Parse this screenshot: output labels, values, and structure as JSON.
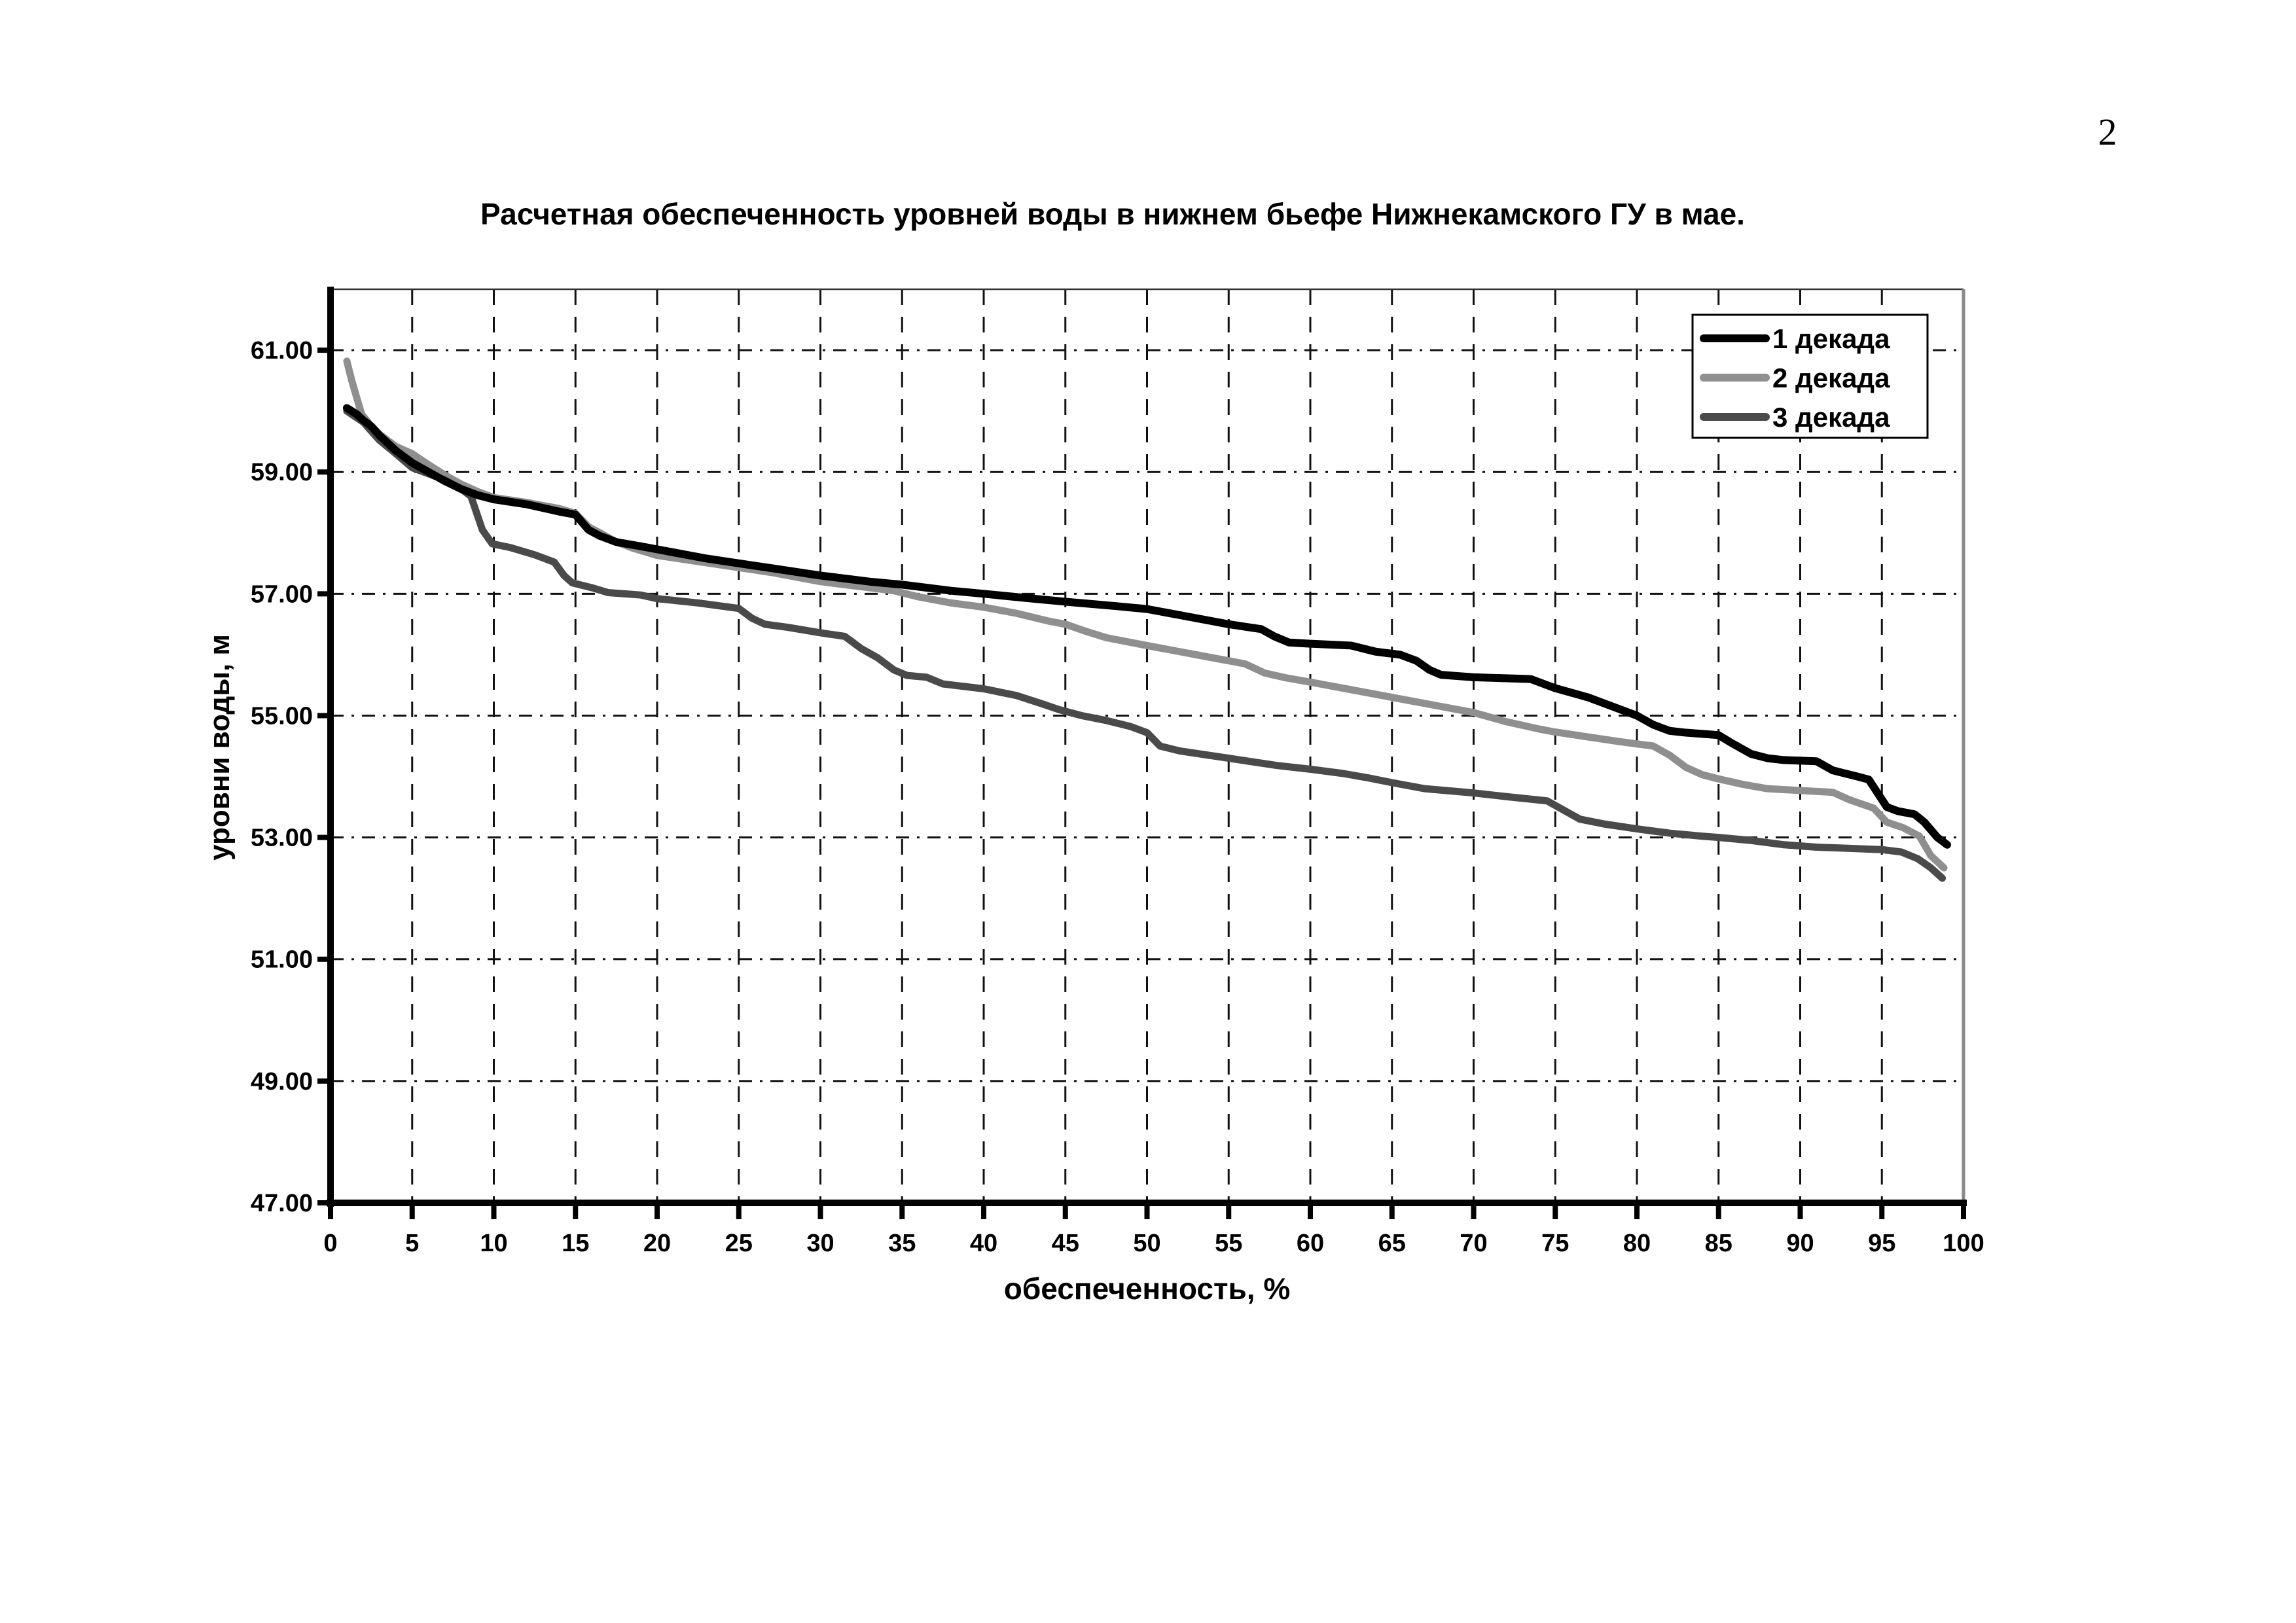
{
  "page": {
    "number": "2"
  },
  "chart_data": {
    "type": "line",
    "title": "Расчетная обеспеченность уровней воды в нижнем бьефе Нижнекамского ГУ в мае.",
    "xlabel": "обеспеченность, %",
    "ylabel": "уровни воды, м",
    "xlim": [
      0,
      100
    ],
    "ylim": [
      47,
      62
    ],
    "grid": true,
    "legend_position": "top-right",
    "x_ticks": [
      0,
      5,
      10,
      15,
      20,
      25,
      30,
      35,
      40,
      45,
      50,
      55,
      60,
      65,
      70,
      75,
      80,
      85,
      90,
      95,
      100
    ],
    "y_ticks": [
      {
        "value": 61,
        "label": "61.00"
      },
      {
        "value": 59,
        "label": "59.00"
      },
      {
        "value": 57,
        "label": "57.00"
      },
      {
        "value": 55,
        "label": "55.00"
      },
      {
        "value": 53,
        "label": "53.00"
      },
      {
        "value": 51,
        "label": "51.00"
      },
      {
        "value": 49,
        "label": "49.00"
      },
      {
        "value": 47,
        "label": "47.00"
      }
    ],
    "series": [
      {
        "name": "1 декада",
        "color": "#000000",
        "width": 12,
        "points": [
          [
            1,
            60.05
          ],
          [
            1.6,
            59.95
          ],
          [
            2,
            59.85
          ],
          [
            2.5,
            59.75
          ],
          [
            3,
            59.6
          ],
          [
            4,
            59.35
          ],
          [
            5,
            59.15
          ],
          [
            6,
            59.0
          ],
          [
            7,
            58.85
          ],
          [
            8,
            58.72
          ],
          [
            9,
            58.62
          ],
          [
            10,
            58.55
          ],
          [
            12,
            58.47
          ],
          [
            14,
            58.35
          ],
          [
            15,
            58.3
          ],
          [
            15.8,
            58.05
          ],
          [
            16.5,
            57.95
          ],
          [
            17.5,
            57.85
          ],
          [
            19,
            57.78
          ],
          [
            21,
            57.68
          ],
          [
            23,
            57.58
          ],
          [
            25,
            57.5
          ],
          [
            27,
            57.42
          ],
          [
            30,
            57.3
          ],
          [
            33,
            57.2
          ],
          [
            35,
            57.15
          ],
          [
            38,
            57.05
          ],
          [
            40,
            57.0
          ],
          [
            43,
            56.92
          ],
          [
            45,
            56.87
          ],
          [
            48,
            56.8
          ],
          [
            50,
            56.75
          ],
          [
            52,
            56.65
          ],
          [
            55,
            56.5
          ],
          [
            57,
            56.42
          ],
          [
            57.8,
            56.3
          ],
          [
            58.7,
            56.2
          ],
          [
            60,
            56.18
          ],
          [
            62.5,
            56.15
          ],
          [
            64,
            56.05
          ],
          [
            65.5,
            56.0
          ],
          [
            66.5,
            55.9
          ],
          [
            67.3,
            55.75
          ],
          [
            68,
            55.67
          ],
          [
            70,
            55.63
          ],
          [
            73.5,
            55.6
          ],
          [
            75,
            55.45
          ],
          [
            77,
            55.3
          ],
          [
            78.5,
            55.15
          ],
          [
            80,
            55.0
          ],
          [
            81,
            54.85
          ],
          [
            82,
            54.75
          ],
          [
            83,
            54.72
          ],
          [
            85,
            54.68
          ],
          [
            85.8,
            54.55
          ],
          [
            87,
            54.37
          ],
          [
            88,
            54.3
          ],
          [
            89,
            54.27
          ],
          [
            91,
            54.25
          ],
          [
            92,
            54.1
          ],
          [
            93.5,
            54.0
          ],
          [
            94.2,
            53.95
          ],
          [
            95.3,
            53.5
          ],
          [
            96,
            53.43
          ],
          [
            97,
            53.38
          ],
          [
            97.6,
            53.25
          ],
          [
            98.4,
            53.0
          ],
          [
            99,
            52.88
          ]
        ]
      },
      {
        "name": "2 декада",
        "color": "#8f8f8f",
        "width": 11,
        "points": [
          [
            1,
            60.82
          ],
          [
            1.3,
            60.5
          ],
          [
            1.9,
            59.95
          ],
          [
            2.5,
            59.75
          ],
          [
            3,
            59.62
          ],
          [
            4,
            59.42
          ],
          [
            5,
            59.3
          ],
          [
            6,
            59.12
          ],
          [
            7,
            58.95
          ],
          [
            8,
            58.8
          ],
          [
            9,
            58.68
          ],
          [
            10,
            58.58
          ],
          [
            12,
            58.5
          ],
          [
            14,
            58.4
          ],
          [
            15,
            58.32
          ],
          [
            15.8,
            58.1
          ],
          [
            16.5,
            58.0
          ],
          [
            17.5,
            57.85
          ],
          [
            18.5,
            57.75
          ],
          [
            20,
            57.63
          ],
          [
            22,
            57.55
          ],
          [
            24,
            57.47
          ],
          [
            25,
            57.43
          ],
          [
            27,
            57.35
          ],
          [
            30,
            57.2
          ],
          [
            33,
            57.1
          ],
          [
            34.5,
            57.05
          ],
          [
            36,
            56.95
          ],
          [
            38,
            56.85
          ],
          [
            40,
            56.78
          ],
          [
            42,
            56.68
          ],
          [
            44,
            56.55
          ],
          [
            45,
            56.5
          ],
          [
            46.3,
            56.38
          ],
          [
            47.5,
            56.28
          ],
          [
            50,
            56.15
          ],
          [
            52,
            56.05
          ],
          [
            54,
            55.95
          ],
          [
            56,
            55.85
          ],
          [
            57.2,
            55.7
          ],
          [
            58.5,
            55.62
          ],
          [
            60,
            55.55
          ],
          [
            62,
            55.45
          ],
          [
            65,
            55.3
          ],
          [
            67,
            55.2
          ],
          [
            70,
            55.05
          ],
          [
            72,
            54.9
          ],
          [
            74,
            54.78
          ],
          [
            75,
            54.73
          ],
          [
            77,
            54.65
          ],
          [
            79,
            54.57
          ],
          [
            81,
            54.5
          ],
          [
            82,
            54.35
          ],
          [
            83,
            54.15
          ],
          [
            84,
            54.03
          ],
          [
            85,
            53.96
          ],
          [
            86.5,
            53.87
          ],
          [
            88,
            53.8
          ],
          [
            90,
            53.77
          ],
          [
            92,
            53.74
          ],
          [
            93,
            53.62
          ],
          [
            94.5,
            53.48
          ],
          [
            95.3,
            53.25
          ],
          [
            96.3,
            53.16
          ],
          [
            97.3,
            53.02
          ],
          [
            98,
            52.7
          ],
          [
            98.8,
            52.5
          ]
        ]
      },
      {
        "name": "3 декада",
        "color": "#4a4a4a",
        "width": 11,
        "points": [
          [
            1,
            60.0
          ],
          [
            2,
            59.82
          ],
          [
            3,
            59.52
          ],
          [
            4,
            59.3
          ],
          [
            5,
            59.07
          ],
          [
            6,
            58.97
          ],
          [
            7,
            58.87
          ],
          [
            8,
            58.72
          ],
          [
            8.6,
            58.6
          ],
          [
            9.3,
            58.05
          ],
          [
            9.9,
            57.82
          ],
          [
            11,
            57.76
          ],
          [
            12.5,
            57.64
          ],
          [
            13.7,
            57.52
          ],
          [
            14.3,
            57.3
          ],
          [
            14.8,
            57.18
          ],
          [
            16,
            57.1
          ],
          [
            17,
            57.02
          ],
          [
            19,
            56.98
          ],
          [
            20,
            56.92
          ],
          [
            22.5,
            56.85
          ],
          [
            25,
            56.76
          ],
          [
            25.8,
            56.6
          ],
          [
            26.6,
            56.5
          ],
          [
            28,
            56.45
          ],
          [
            30,
            56.36
          ],
          [
            31.5,
            56.3
          ],
          [
            32.5,
            56.1
          ],
          [
            33.5,
            55.95
          ],
          [
            34.5,
            55.75
          ],
          [
            35.3,
            55.66
          ],
          [
            36.5,
            55.63
          ],
          [
            37.5,
            55.52
          ],
          [
            40,
            55.44
          ],
          [
            42,
            55.33
          ],
          [
            43.5,
            55.2
          ],
          [
            44.6,
            55.1
          ],
          [
            46,
            55.0
          ],
          [
            47.5,
            54.92
          ],
          [
            49,
            54.82
          ],
          [
            50,
            54.72
          ],
          [
            50.8,
            54.5
          ],
          [
            52,
            54.42
          ],
          [
            55,
            54.3
          ],
          [
            58,
            54.18
          ],
          [
            60,
            54.12
          ],
          [
            62,
            54.05
          ],
          [
            63.5,
            53.98
          ],
          [
            65,
            53.9
          ],
          [
            67,
            53.8
          ],
          [
            70,
            53.73
          ],
          [
            72,
            53.67
          ],
          [
            74.5,
            53.6
          ],
          [
            75.5,
            53.45
          ],
          [
            76.5,
            53.3
          ],
          [
            78,
            53.22
          ],
          [
            80,
            53.14
          ],
          [
            82,
            53.07
          ],
          [
            84,
            53.02
          ],
          [
            85,
            53.0
          ],
          [
            87,
            52.95
          ],
          [
            89,
            52.88
          ],
          [
            91,
            52.84
          ],
          [
            95,
            52.8
          ],
          [
            96.2,
            52.76
          ],
          [
            97.2,
            52.65
          ],
          [
            98,
            52.5
          ],
          [
            98.7,
            52.33
          ]
        ]
      }
    ]
  }
}
